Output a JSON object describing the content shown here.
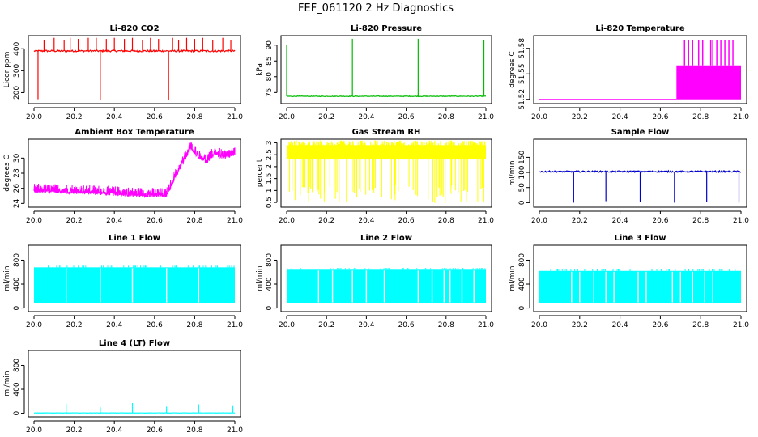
{
  "page": {
    "title": "FEF_061120  2 Hz Diagnostics"
  },
  "chart_data": [
    {
      "type": "line",
      "title": "Li-820 CO2",
      "xlabel": "",
      "ylabel": "Licor ppm",
      "xlim": [
        20.0,
        21.0
      ],
      "ylim": [
        150,
        460
      ],
      "yticks": [
        200,
        300,
        400
      ],
      "xticks": [
        "20.0",
        "20.2",
        "20.4",
        "20.6",
        "20.8",
        "21.0"
      ],
      "color": "#ff0000",
      "series": [
        {
          "baseline": 390,
          "noise": 6,
          "band": 8,
          "spikes": [
            [
              20.02,
              170
            ],
            [
              20.05,
              440
            ],
            [
              20.1,
              450
            ],
            [
              20.15,
              440
            ],
            [
              20.18,
              450
            ],
            [
              20.22,
              445
            ],
            [
              20.27,
              450
            ],
            [
              20.31,
              450
            ],
            [
              20.33,
              165
            ],
            [
              20.36,
              445
            ],
            [
              20.4,
              450
            ],
            [
              20.45,
              445
            ],
            [
              20.49,
              450
            ],
            [
              20.54,
              440
            ],
            [
              20.58,
              450
            ],
            [
              20.62,
              445
            ],
            [
              20.67,
              165
            ],
            [
              20.69,
              450
            ],
            [
              20.72,
              440
            ],
            [
              20.76,
              450
            ],
            [
              20.8,
              445
            ],
            [
              20.84,
              450
            ],
            [
              20.89,
              440
            ],
            [
              20.94,
              450
            ],
            [
              20.98,
              440
            ]
          ]
        }
      ]
    },
    {
      "type": "line",
      "title": "Li-820 Pressure",
      "xlabel": "",
      "ylabel": "kPa",
      "xlim": [
        20.0,
        21.0
      ],
      "ylim": [
        71.5,
        93
      ],
      "yticks": [
        75,
        80,
        85,
        90
      ],
      "xticks": [
        "20.0",
        "20.2",
        "20.4",
        "20.6",
        "20.8",
        "21.0"
      ],
      "color": "#00bb00",
      "series": [
        {
          "baseline": 73.8,
          "noise": 0.15,
          "band": 0.2,
          "spikes": [
            [
              20.0,
              90
            ],
            [
              20.33,
              92
            ],
            [
              20.66,
              92
            ],
            [
              20.99,
              91.5
            ]
          ]
        }
      ]
    },
    {
      "type": "area",
      "title": "Li-820 Temperature",
      "xlabel": "",
      "ylabel": "degrees C",
      "xlim": [
        20.0,
        21.0
      ],
      "ylim": [
        51.515,
        51.595
      ],
      "yticks": [
        51.52,
        51.55,
        51.58
      ],
      "xticks": [
        "20.0",
        "20.2",
        "20.4",
        "20.6",
        "20.8",
        "21.0"
      ],
      "color": "#ff00ff",
      "series": [
        {
          "low_value": 51.52,
          "step_x": 20.68,
          "band": [
            51.52,
            51.56
          ],
          "spikes_top": 51.59,
          "spike_x": [
            20.72,
            20.74,
            20.76,
            20.79,
            20.81,
            20.85,
            20.86,
            20.88,
            20.9,
            20.92,
            20.94,
            20.96
          ]
        }
      ]
    },
    {
      "type": "line",
      "title": "Ambient Box Temperature",
      "xlabel": "",
      "ylabel": "degrees C",
      "xlim": [
        20.0,
        21.0
      ],
      "ylim": [
        23.5,
        32.5
      ],
      "yticks": [
        24,
        26,
        28,
        30
      ],
      "xticks": [
        "20.0",
        "20.2",
        "20.4",
        "20.6",
        "20.8",
        "21.0"
      ],
      "color": "#ff00ff",
      "series": [
        {
          "profile": [
            [
              20.0,
              25.8
            ],
            [
              20.3,
              25.6
            ],
            [
              20.5,
              25.3
            ],
            [
              20.66,
              25.2
            ],
            [
              20.7,
              27.5
            ],
            [
              20.74,
              29.5
            ],
            [
              20.78,
              31.5
            ],
            [
              20.82,
              30.3
            ],
            [
              20.86,
              29.7
            ],
            [
              20.9,
              30.8
            ],
            [
              20.95,
              30.2
            ],
            [
              21.0,
              30.8
            ]
          ],
          "band": 1.2
        }
      ]
    },
    {
      "type": "area",
      "title": "Gas Stream RH",
      "xlabel": "",
      "ylabel": "percent",
      "xlim": [
        20.0,
        21.0
      ],
      "ylim": [
        0.3,
        3.15
      ],
      "yticks": [
        0.5,
        1.0,
        1.5,
        2.0,
        2.5,
        3.0
      ],
      "xticks": [
        "20.0",
        "20.2",
        "20.4",
        "20.6",
        "20.8",
        "21.0"
      ],
      "color": "#ffff00",
      "series": [
        {
          "band": [
            2.3,
            2.9
          ],
          "min": 0.45,
          "dips": 70
        }
      ]
    },
    {
      "type": "line",
      "title": "Sample Flow",
      "xlabel": "",
      "ylabel": "ml/min",
      "xlim": [
        20.0,
        21.0
      ],
      "ylim": [
        -15,
        210
      ],
      "yticks": [
        0,
        50,
        100,
        150
      ],
      "xticks": [
        "20.0",
        "20.2",
        "20.4",
        "20.6",
        "20.8",
        "21.0"
      ],
      "color": "#0000cc",
      "series": [
        {
          "baseline": 103,
          "noise": 2,
          "band": 5,
          "spikes": [
            [
              20.17,
              0
            ],
            [
              20.33,
              5
            ],
            [
              20.5,
              2
            ],
            [
              20.67,
              0
            ],
            [
              20.83,
              3
            ],
            [
              20.99,
              0
            ]
          ]
        }
      ]
    },
    {
      "type": "area",
      "title": "Line 1 Flow",
      "xlabel": "",
      "ylabel": "ml/min",
      "xlim": [
        20.0,
        21.0
      ],
      "ylim": [
        -60,
        1050
      ],
      "yticks": [
        0,
        400,
        800
      ],
      "xticks": [
        "20.0",
        "20.2",
        "20.4",
        "20.6",
        "20.8",
        "21.0"
      ],
      "color": "#00ffff",
      "series": [
        {
          "band": [
            80,
            680
          ],
          "gaps": [
            20.16,
            20.33,
            20.49,
            20.66,
            20.82
          ]
        }
      ]
    },
    {
      "type": "area",
      "title": "Line 2 Flow",
      "xlabel": "",
      "ylabel": "ml/min",
      "xlim": [
        20.0,
        21.0
      ],
      "ylim": [
        -60,
        1050
      ],
      "yticks": [
        0,
        400,
        800
      ],
      "xticks": [
        "20.0",
        "20.2",
        "20.4",
        "20.6",
        "20.8",
        "21.0"
      ],
      "color": "#00ffff",
      "series": [
        {
          "band": [
            80,
            640
          ],
          "gaps": [
            20.16,
            20.23,
            20.33,
            20.4,
            20.49,
            20.66,
            20.73,
            20.79,
            20.82,
            20.88,
            20.94
          ]
        }
      ]
    },
    {
      "type": "area",
      "title": "Line 3 Flow",
      "xlabel": "",
      "ylabel": "ml/min",
      "xlim": [
        20.0,
        21.0
      ],
      "ylim": [
        -60,
        1050
      ],
      "yticks": [
        0,
        400,
        800
      ],
      "xticks": [
        "20.0",
        "20.2",
        "20.4",
        "20.6",
        "20.8",
        "21.0"
      ],
      "color": "#00ffff",
      "series": [
        {
          "band": [
            80,
            620
          ],
          "gaps": [
            20.16,
            20.2,
            20.27,
            20.33,
            20.37,
            20.49,
            20.53,
            20.66,
            20.7,
            20.76,
            20.82,
            20.86
          ]
        }
      ]
    },
    {
      "type": "line",
      "title": "Line 4 (LT) Flow",
      "xlabel": "",
      "ylabel": "ml/min",
      "xlim": [
        20.0,
        21.0
      ],
      "ylim": [
        -60,
        1050
      ],
      "yticks": [
        0,
        400,
        800
      ],
      "xticks": [
        "20.0",
        "20.2",
        "20.4",
        "20.6",
        "20.8",
        "21.0"
      ],
      "color": "#00ffff",
      "series": [
        {
          "baseline": 5,
          "noise": 3,
          "band": 4,
          "spikes": [
            [
              20.16,
              160
            ],
            [
              20.33,
              100
            ],
            [
              20.49,
              170
            ],
            [
              20.66,
              110
            ],
            [
              20.82,
              150
            ],
            [
              20.99,
              120
            ]
          ]
        }
      ]
    }
  ]
}
